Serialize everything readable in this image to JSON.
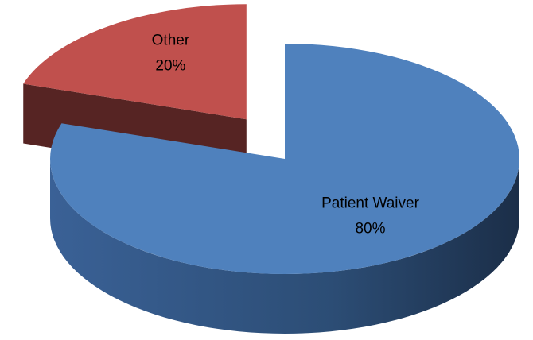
{
  "chart_data": {
    "type": "pie",
    "categories": [
      "Patient Waiver",
      "Other"
    ],
    "values": [
      80,
      20
    ],
    "value_labels": [
      "80%",
      "20%"
    ],
    "colors": [
      "#4f81bd",
      "#c0504d"
    ]
  }
}
